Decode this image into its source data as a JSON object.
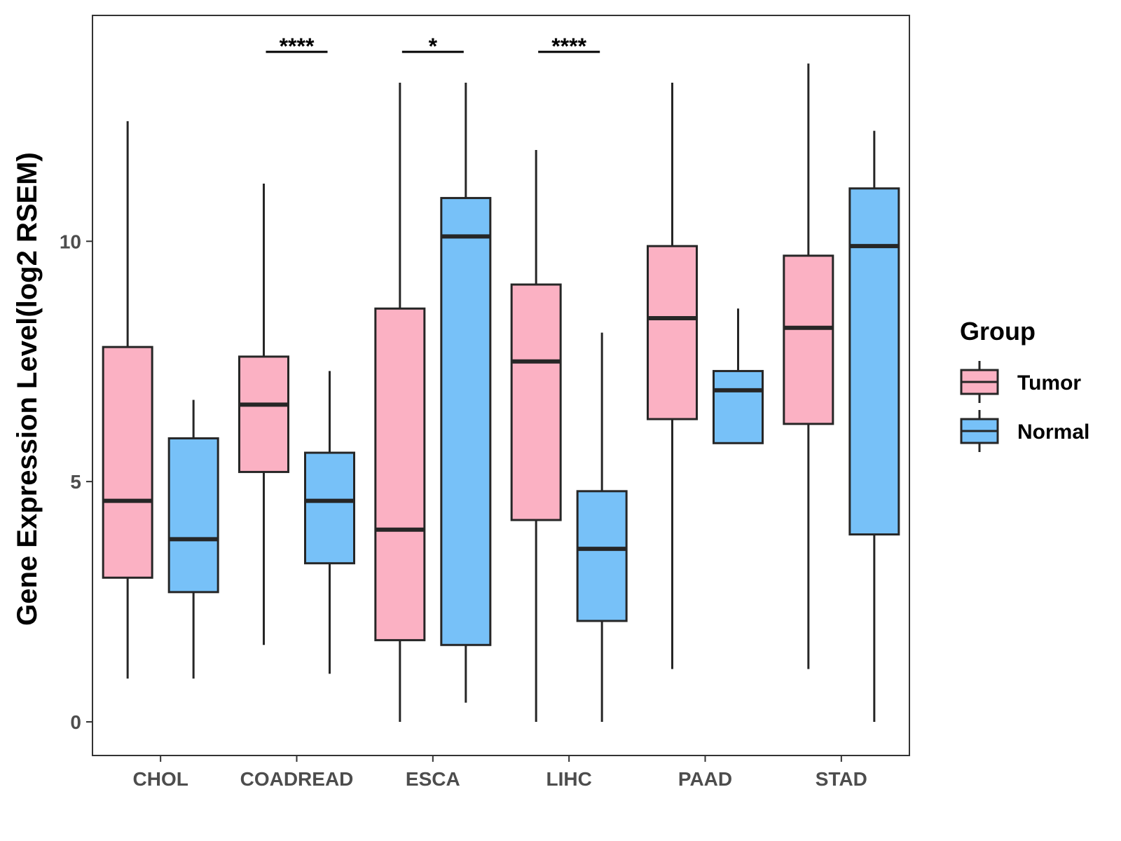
{
  "chart_data": {
    "type": "boxplot",
    "title": "",
    "xlabel": "",
    "ylabel": "Gene Expression Level(log2 RSEM)",
    "ylim": [
      -0.7,
      14.7
    ],
    "yticks": [
      0,
      5,
      10
    ],
    "ytick_labels": [
      "0",
      "5",
      "10"
    ],
    "grid": false,
    "categories": [
      "CHOL",
      "COADREAD",
      "ESCA",
      "LIHC",
      "PAAD",
      "STAD"
    ],
    "legend": {
      "title": "Group",
      "placement": "right",
      "entries": [
        {
          "name": "Tumor",
          "color": "#fbb1c3"
        },
        {
          "name": "Normal",
          "color": "#77c1f8"
        }
      ]
    },
    "series": [
      {
        "name": "Tumor",
        "color": "#fbb1c3",
        "boxes": [
          {
            "category": "CHOL",
            "min": 0.9,
            "q1": 3.0,
            "median": 4.6,
            "q3": 7.8,
            "max": 12.5
          },
          {
            "category": "COADREAD",
            "min": 1.6,
            "q1": 5.2,
            "median": 6.6,
            "q3": 7.6,
            "max": 11.2
          },
          {
            "category": "ESCA",
            "min": 0.0,
            "q1": 1.7,
            "median": 4.0,
            "q3": 8.6,
            "max": 13.3
          },
          {
            "category": "LIHC",
            "min": 0.0,
            "q1": 4.2,
            "median": 7.5,
            "q3": 9.1,
            "max": 11.9
          },
          {
            "category": "PAAD",
            "min": 1.1,
            "q1": 6.3,
            "median": 8.4,
            "q3": 9.9,
            "max": 13.3
          },
          {
            "category": "STAD",
            "min": 1.1,
            "q1": 6.2,
            "median": 8.2,
            "q3": 9.7,
            "max": 13.7
          }
        ]
      },
      {
        "name": "Normal",
        "color": "#77c1f8",
        "boxes": [
          {
            "category": "CHOL",
            "min": 0.9,
            "q1": 2.7,
            "median": 3.8,
            "q3": 5.9,
            "max": 6.7
          },
          {
            "category": "COADREAD",
            "min": 1.0,
            "q1": 3.3,
            "median": 4.6,
            "q3": 5.6,
            "max": 7.3
          },
          {
            "category": "ESCA",
            "min": 0.4,
            "q1": 1.6,
            "median": 10.1,
            "q3": 10.9,
            "max": 13.3
          },
          {
            "category": "LIHC",
            "min": 0.0,
            "q1": 2.1,
            "median": 3.6,
            "q3": 4.8,
            "max": 8.1
          },
          {
            "category": "PAAD",
            "min": 5.8,
            "q1": 5.8,
            "median": 6.9,
            "q3": 7.3,
            "max": 8.6
          },
          {
            "category": "STAD",
            "min": 0.0,
            "q1": 3.9,
            "median": 9.9,
            "q3": 11.1,
            "max": 12.3
          }
        ]
      }
    ],
    "annotations": [
      {
        "category": "COADREAD",
        "label": "****"
      },
      {
        "category": "ESCA",
        "label": "*"
      },
      {
        "category": "LIHC",
        "label": "****"
      }
    ]
  }
}
